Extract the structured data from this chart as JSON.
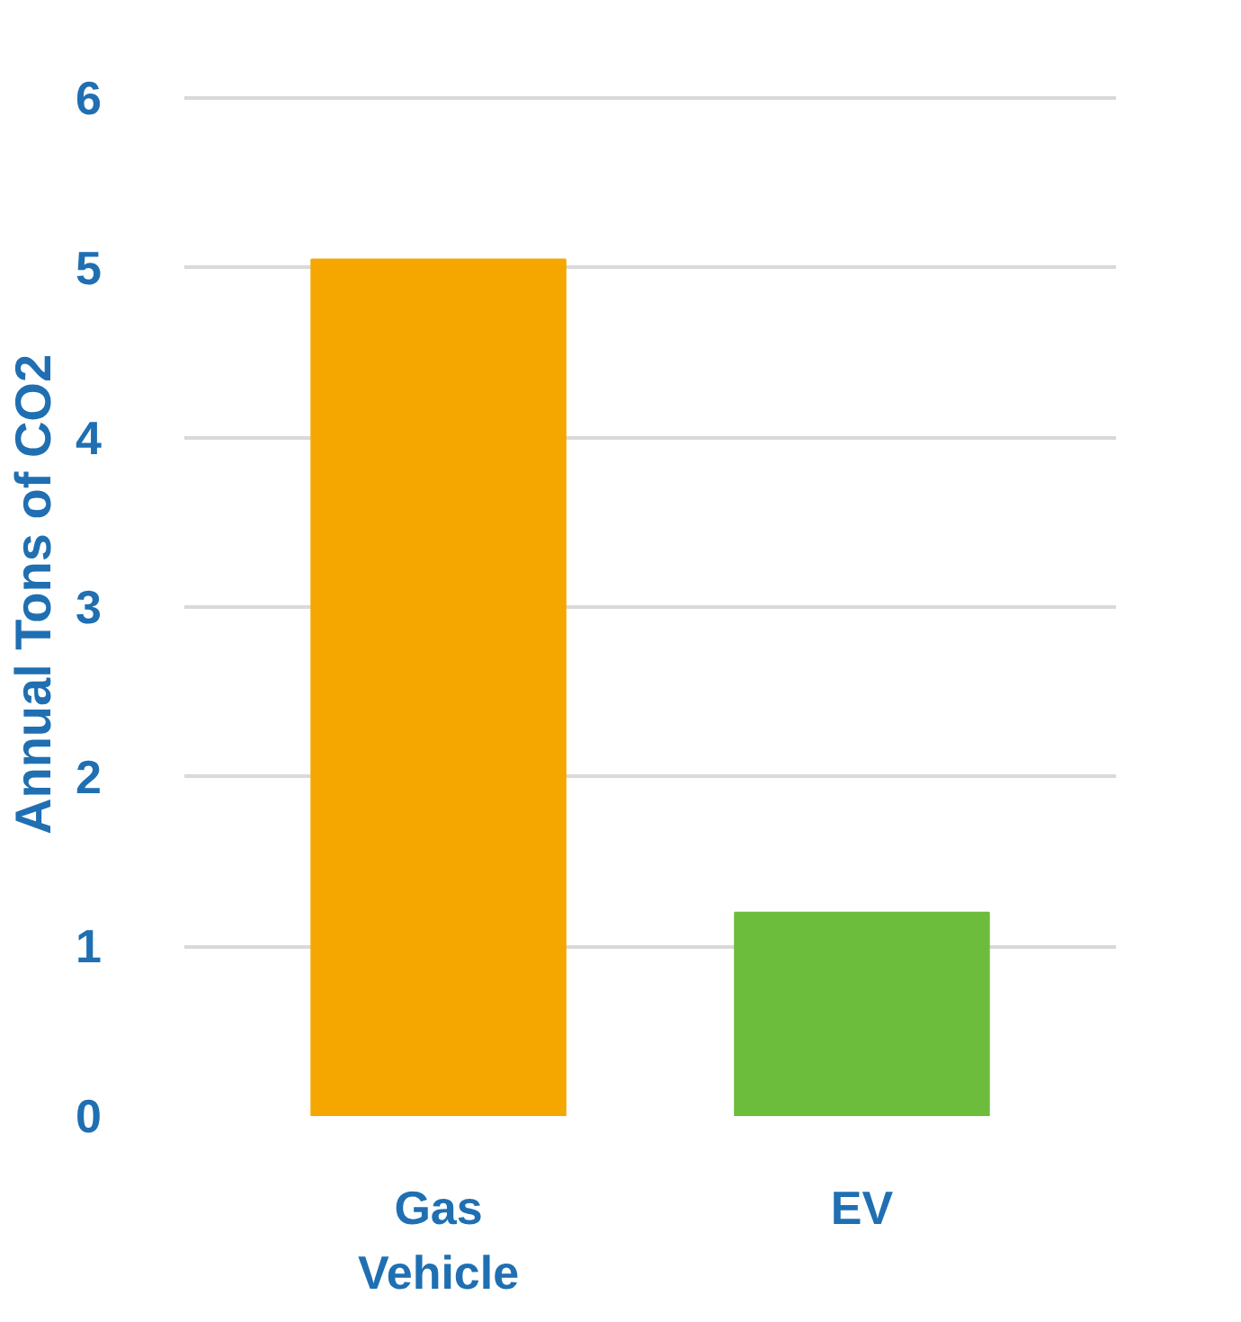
{
  "chart_data": {
    "type": "bar",
    "ylabel": "Annual Tons of CO2",
    "categories": [
      "Gas\nVehicle",
      "EV"
    ],
    "values": [
      5.05,
      1.2
    ],
    "colors": [
      "#f5a700",
      "#6cbd3c"
    ],
    "ylim": [
      0,
      6
    ],
    "yticks": [
      0,
      1,
      2,
      3,
      4,
      5,
      6
    ],
    "grid": "y"
  }
}
